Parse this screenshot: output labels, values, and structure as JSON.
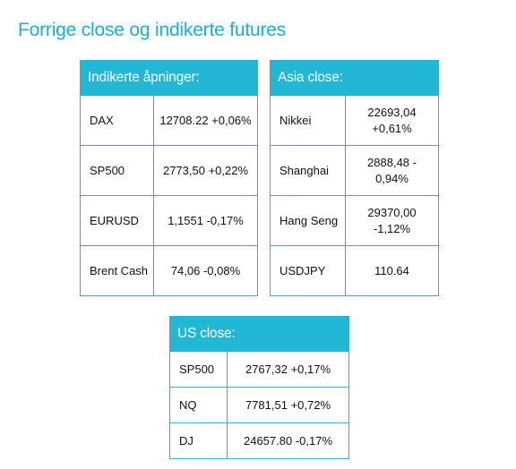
{
  "title": "Forrige close og indikerte futures",
  "tables": {
    "indicated": {
      "header": "Indikerte åpninger:",
      "rows": [
        {
          "name": "DAX",
          "value": "12708.22 +0,06%"
        },
        {
          "name": "SP500",
          "value": "2773,50 +0,22%"
        },
        {
          "name": "EURUSD",
          "value": "1,1551 -0,17%"
        },
        {
          "name": "Brent Cash",
          "value": "74,06 -0,08%"
        }
      ]
    },
    "asia": {
      "header": "Asia close:",
      "rows": [
        {
          "name": "Nikkei",
          "value": "22693,04 +0,61%"
        },
        {
          "name": "Shanghai",
          "value": "2888,48 - 0,94%"
        },
        {
          "name": "Hang Seng",
          "value": "29370,00 -1,12%"
        },
        {
          "name": "USDJPY",
          "value": "110.64"
        }
      ]
    },
    "us": {
      "header": "US close:",
      "rows": [
        {
          "name": "SP500",
          "value": "2767,32 +0,17%"
        },
        {
          "name": "NQ",
          "value": "7781,51 +0,72%"
        },
        {
          "name": "DJ",
          "value": "24657.80 -0,17%"
        }
      ]
    }
  }
}
